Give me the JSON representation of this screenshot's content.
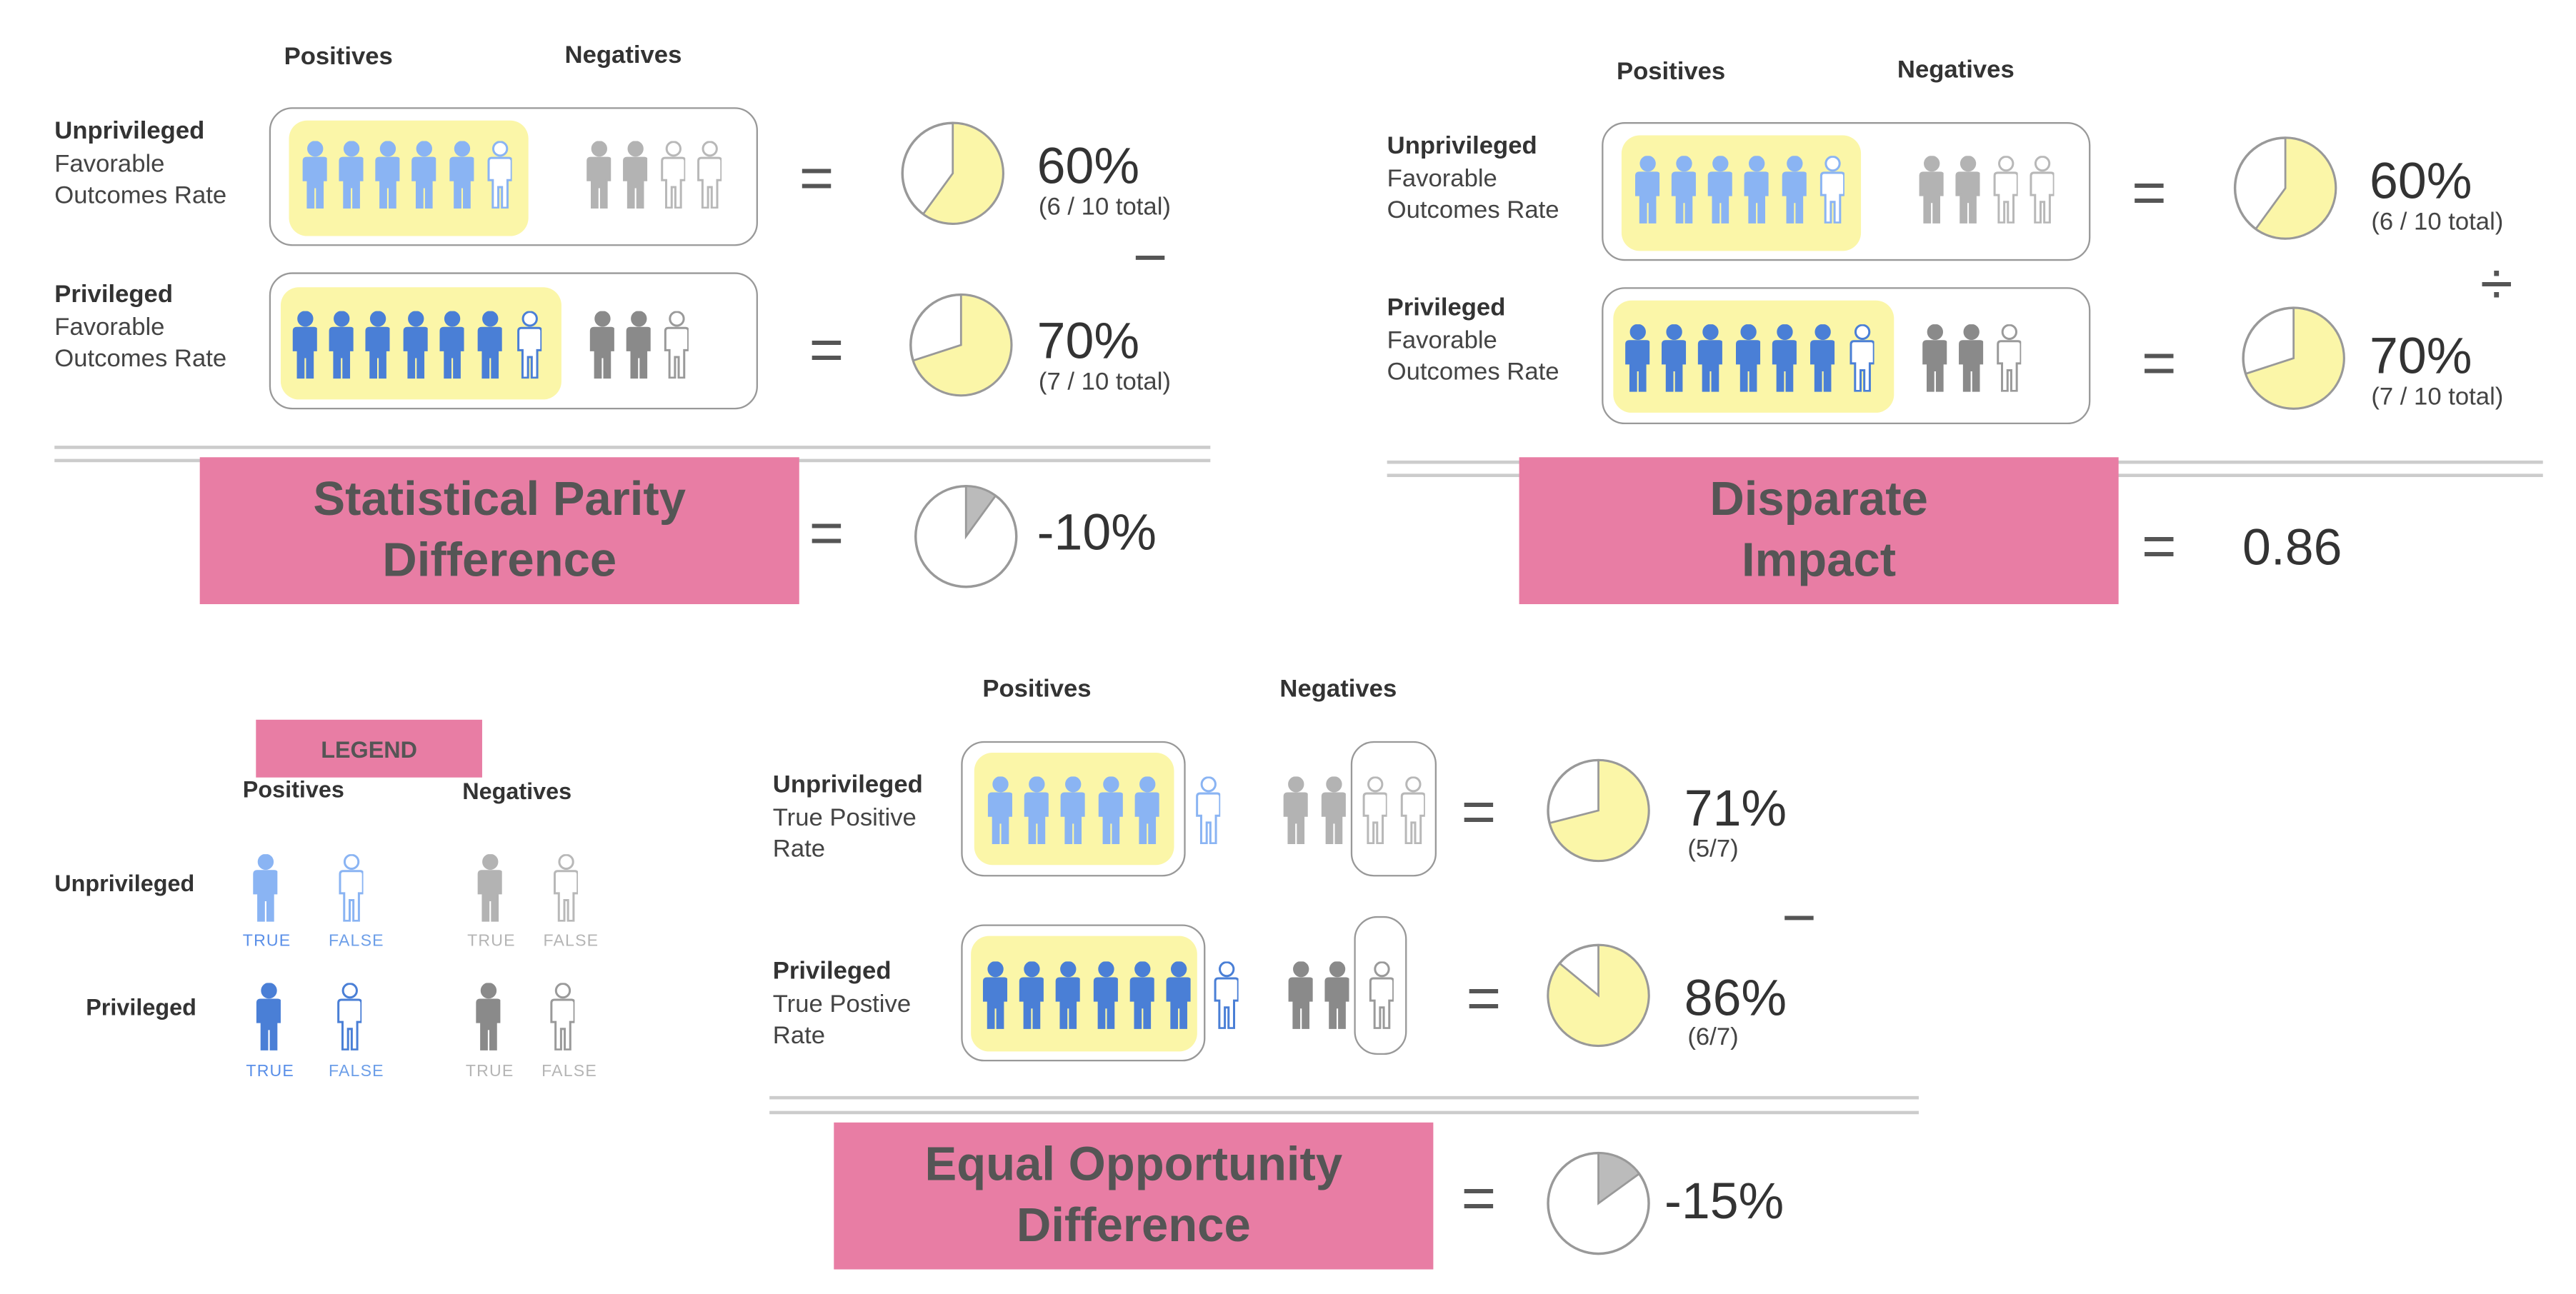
{
  "colors": {
    "highlight": "#fbf6a8",
    "pink": "#e87da4",
    "unpriv_true": "#8ab4f3",
    "priv_true": "#4a7fd6",
    "neg_unpriv": "#b3b3b3",
    "neg_priv": "#8a8a8a",
    "true_label": "#5a8fe8",
    "false_label": "#6c9ee8"
  },
  "headers": {
    "positives": "Positives",
    "negatives": "Negatives"
  },
  "spd": {
    "rows": [
      {
        "label_bold": "Unprivileged",
        "label_lines": [
          "Favorable",
          "Outcomes Rate"
        ],
        "pct": "60%",
        "frac": "(6 / 10 total)",
        "share": 0.6
      },
      {
        "label_bold": "Privileged",
        "label_lines": [
          "Favorable",
          "Outcomes Rate"
        ],
        "pct": "70%",
        "frac": "(7 / 10 total)",
        "share": 0.7
      }
    ],
    "operator": "−",
    "equals": "=",
    "result_lines": [
      "Statistical Parity",
      "Difference"
    ],
    "result_value": "-10%",
    "result_share": 0.1
  },
  "di": {
    "rows": [
      {
        "label_bold": "Unprivileged",
        "label_lines": [
          "Favorable",
          "Outcomes Rate"
        ],
        "pct": "60%",
        "frac": "(6 / 10 total)",
        "share": 0.6
      },
      {
        "label_bold": "Privileged",
        "label_lines": [
          "Favorable",
          "Outcomes Rate"
        ],
        "pct": "70%",
        "frac": "(7 / 10 total)",
        "share": 0.7
      }
    ],
    "operator": "÷",
    "equals": "=",
    "result_lines": [
      "Disparate",
      "Impact"
    ],
    "result_value": "0.86"
  },
  "eod": {
    "rows": [
      {
        "label_bold": "Unprivileged",
        "label_lines": [
          "True Positive",
          "Rate"
        ],
        "pct": "71%",
        "frac": "(5/7)",
        "share": 0.71
      },
      {
        "label_bold": "Privileged",
        "label_lines": [
          "True Postive",
          "Rate"
        ],
        "pct": "86%",
        "frac": "(6/7)",
        "share": 0.86
      }
    ],
    "operator": "−",
    "equals": "=",
    "result_lines": [
      "Equal Opportunity",
      "Difference"
    ],
    "result_value": "-15%",
    "result_share": 0.15
  },
  "legend": {
    "title": "LEGEND",
    "unprivileged": "Unprivileged",
    "privileged": "Privileged",
    "true_text": "TRUE",
    "false_text": "FALSE"
  }
}
